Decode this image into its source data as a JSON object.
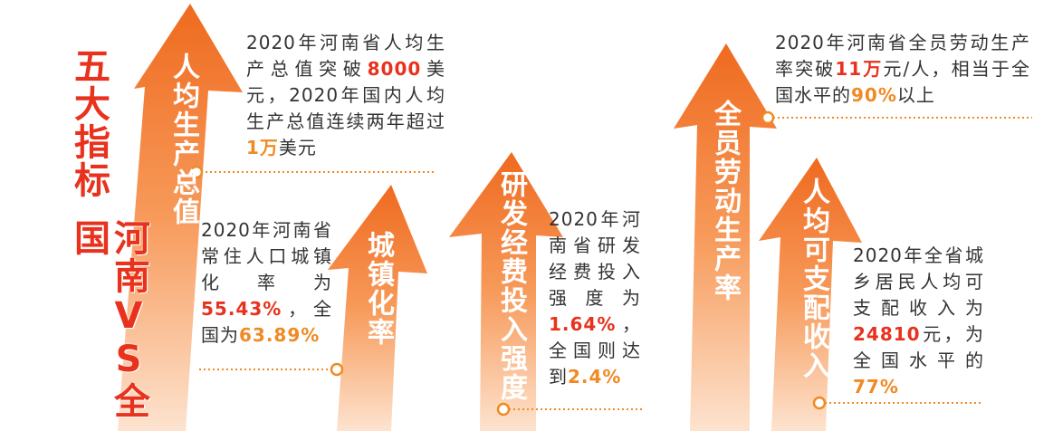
{
  "side_title": [
    "五大指标",
    "河南VS全国"
  ],
  "indicators": [
    {
      "label": "人均生产总值",
      "description": [
        "2020年河南省人均生产总值突破",
        "8000",
        "美元，2020年国内人均生产总值连续两年超过",
        "1万",
        "美元"
      ]
    },
    {
      "label": "城镇化率",
      "description": [
        "2020年河南省常住人口城镇化率为",
        "55.43%",
        "，全国为",
        "63.89%"
      ]
    },
    {
      "label": "研发经费投入强度",
      "description": [
        "2020年河南省研发经费投入强度为",
        "1.64%",
        "，全国则达到",
        "2.4%"
      ]
    },
    {
      "label": "全员劳动生产率",
      "description": [
        "2020年河南省全员劳动生产率突破",
        "11万",
        "元/人，相当于全国水平的",
        "90%",
        "以上"
      ]
    },
    {
      "label": "人均可支配收入",
      "description": [
        "2020年全省城乡居民人均可支配收入为",
        "24810",
        "元，为全国水平的",
        "77%"
      ]
    }
  ]
}
